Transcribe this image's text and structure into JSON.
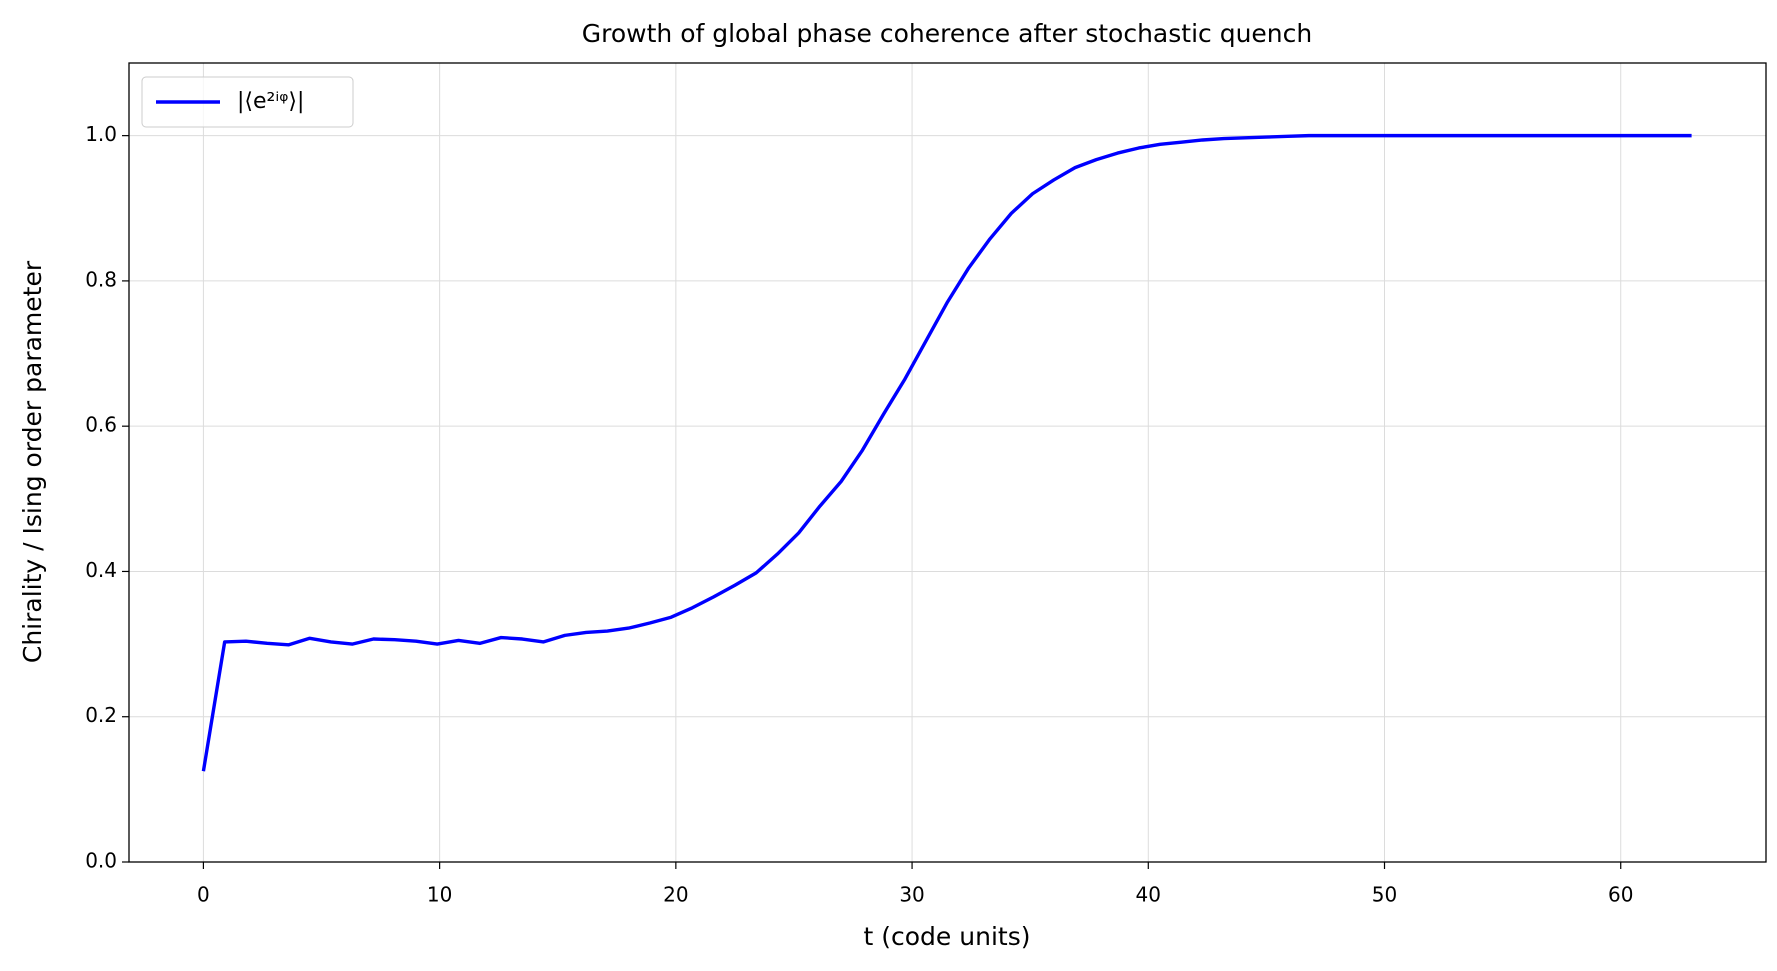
{
  "chart_data": {
    "type": "line",
    "title": "Growth of global phase coherence after stochastic quench",
    "x_label": "t  (code units)",
    "y_label": "Chirality / Ising order parameter",
    "x": [
      0,
      0.9,
      1.8,
      2.7,
      3.6,
      4.5,
      5.4,
      6.3,
      7.2,
      8.1,
      9.0,
      9.9,
      10.8,
      11.7,
      12.6,
      13.5,
      14.4,
      15.3,
      16.2,
      17.1,
      18.0,
      18.9,
      19.8,
      20.7,
      21.6,
      22.5,
      23.4,
      24.3,
      25.2,
      26.1,
      27.0,
      27.9,
      28.8,
      29.7,
      30.6,
      31.5,
      32.4,
      33.3,
      34.2,
      35.1,
      36.0,
      36.9,
      37.8,
      38.7,
      39.6,
      40.5,
      41.4,
      42.3,
      43.2,
      44.1,
      45.0,
      45.9,
      46.8,
      47.7,
      48.6,
      49.5,
      50.4,
      51.3,
      52.2,
      53.1,
      54.0,
      54.9,
      55.8,
      56.7,
      57.6,
      58.5,
      59.4,
      60.3,
      61.2,
      62.1,
      63.0
    ],
    "series": [
      {
        "name": "|⟨e²ⁱᵠ⟩|",
        "color": "#0000ff",
        "values": [
          0.125,
          0.303,
          0.304,
          0.301,
          0.299,
          0.308,
          0.303,
          0.3,
          0.307,
          0.306,
          0.304,
          0.3,
          0.305,
          0.301,
          0.309,
          0.307,
          0.303,
          0.312,
          0.316,
          0.318,
          0.322,
          0.329,
          0.337,
          0.35,
          0.365,
          0.381,
          0.398,
          0.424,
          0.453,
          0.49,
          0.524,
          0.567,
          0.617,
          0.665,
          0.718,
          0.771,
          0.818,
          0.858,
          0.893,
          0.92,
          0.939,
          0.956,
          0.967,
          0.976,
          0.983,
          0.988,
          0.991,
          0.994,
          0.996,
          0.997,
          0.998,
          0.999,
          1.0,
          1.0,
          1.0,
          1.0,
          1.0,
          1.0,
          1.0,
          1.0,
          1.0,
          1.0,
          1.0,
          1.0,
          1.0,
          1.0,
          1.0,
          1.0,
          1.0,
          1.0,
          1.0
        ]
      }
    ],
    "xlim": [
      -3.15,
      66.15
    ],
    "ylim": [
      0,
      1.1
    ],
    "xticks": [
      0,
      10,
      20,
      30,
      40,
      50,
      60
    ],
    "yticks": [
      {
        "value": 0,
        "label": "0.0"
      },
      0.2,
      0.4,
      0.6,
      0.8,
      {
        "value": 1,
        "label": "1.0"
      }
    ],
    "grid": true,
    "legend": "upper-left"
  }
}
